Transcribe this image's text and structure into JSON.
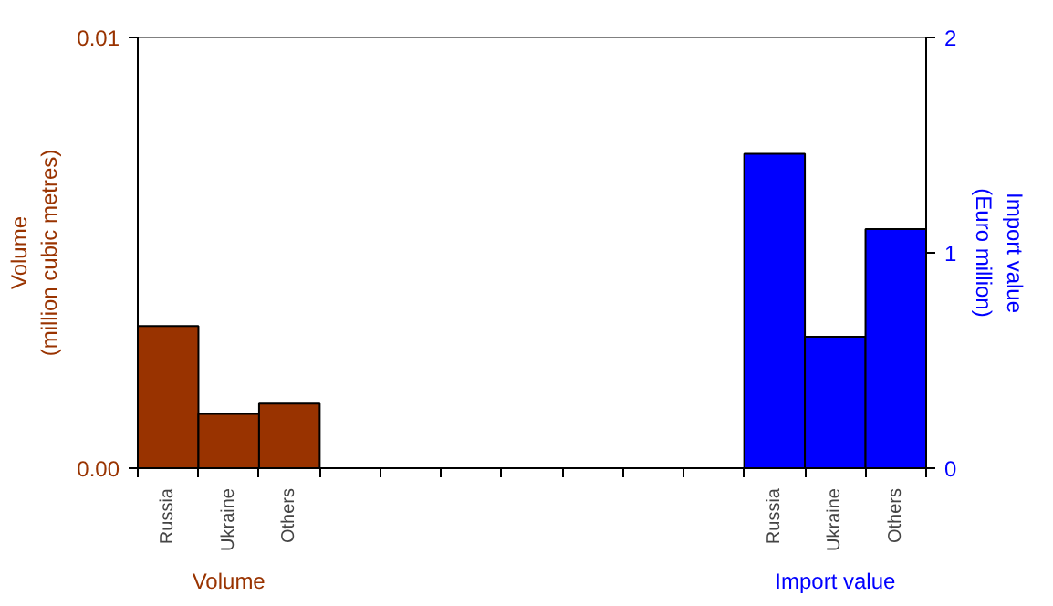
{
  "chart_data": {
    "type": "bar",
    "categories": [
      "Russia",
      "Ukraine",
      "Others",
      null,
      null,
      null,
      null,
      null,
      null,
      null,
      "Russia",
      "Ukraine",
      "Others"
    ],
    "ylabel": "Volume\n(million cubic metres)",
    "y2label": "Import value\n(Euro million)",
    "ylim": [
      0,
      0.01
    ],
    "yticks": [
      {
        "value": 0,
        "label": "0.00"
      },
      {
        "value": 0.01,
        "label": "0.01"
      }
    ],
    "y2lim": [
      0,
      2
    ],
    "y2ticks": [
      0,
      1,
      2
    ],
    "series": [
      {
        "name": "Volume",
        "color": "#993300",
        "values": [
          0.0033,
          0.00126,
          0.0015,
          null,
          null,
          null,
          null,
          null,
          null,
          null,
          null,
          null,
          null
        ]
      },
      {
        "name": "Import value",
        "color": "#0000ff",
        "axis": "y2",
        "values": [
          null,
          null,
          null,
          null,
          null,
          null,
          null,
          null,
          null,
          null,
          1.46,
          0.61,
          1.11
        ]
      }
    ]
  }
}
